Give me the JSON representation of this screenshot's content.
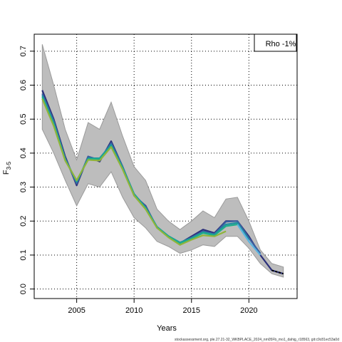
{
  "chart_data": {
    "type": "line",
    "xlabel": "Years",
    "ylabel_main": "F",
    "ylabel_sub": "3-5",
    "xlim": [
      2001.3,
      2024.2
    ],
    "ylim": [
      -0.028,
      0.75
    ],
    "x_ticks": [
      2005,
      2010,
      2015,
      2020
    ],
    "y_ticks": [
      0.0,
      0.1,
      0.2,
      0.3,
      0.4,
      0.5,
      0.6,
      0.7
    ],
    "grid": true,
    "legend": {
      "placement": "top-right",
      "text": "Rho -1%"
    },
    "caption": "stockassessment.org, ple.27.21-32_WKBPLACE_2024_nm05Fb_mo1_dahig_r18563, git:c9c81ec53a0d",
    "band": {
      "x": [
        2002,
        2003,
        2004,
        2005,
        2006,
        2007,
        2008,
        2009,
        2010,
        2011,
        2012,
        2013,
        2014,
        2015,
        2016,
        2017,
        2018,
        2019,
        2020,
        2021,
        2022,
        2023
      ],
      "lower": [
        0.47,
        0.4,
        0.32,
        0.245,
        0.31,
        0.3,
        0.345,
        0.27,
        0.21,
        0.18,
        0.14,
        0.125,
        0.105,
        0.115,
        0.13,
        0.125,
        0.155,
        0.155,
        0.12,
        0.075,
        0.045,
        0.035
      ],
      "upper": [
        0.72,
        0.6,
        0.47,
        0.38,
        0.49,
        0.47,
        0.55,
        0.45,
        0.36,
        0.32,
        0.235,
        0.2,
        0.175,
        0.2,
        0.23,
        0.21,
        0.265,
        0.27,
        0.2,
        0.115,
        0.075,
        0.065
      ]
    },
    "series": [
      {
        "color": "#2a2f7a",
        "x": [
          2002,
          2003,
          2004,
          2005,
          2006,
          2007,
          2008,
          2009,
          2010,
          2011,
          2012,
          2013,
          2014,
          2015,
          2016,
          2017,
          2018,
          2019,
          2020,
          2021,
          2022,
          2023
        ],
        "values": [
          0.585,
          0.5,
          0.39,
          0.305,
          0.39,
          0.375,
          0.435,
          0.36,
          0.275,
          0.245,
          0.18,
          0.155,
          0.135,
          0.155,
          0.175,
          0.165,
          0.2,
          0.2,
          0.155,
          0.1,
          0.055,
          0.045
        ]
      },
      {
        "color": "#3a5fa0",
        "x": [
          2002,
          2003,
          2004,
          2005,
          2006,
          2007,
          2008,
          2009,
          2010,
          2011,
          2012,
          2013,
          2014,
          2015,
          2016,
          2017,
          2018,
          2019,
          2020,
          2021
        ],
        "values": [
          0.575,
          0.495,
          0.385,
          0.31,
          0.39,
          0.38,
          0.43,
          0.36,
          0.278,
          0.243,
          0.182,
          0.155,
          0.136,
          0.152,
          0.17,
          0.162,
          0.198,
          0.2,
          0.15,
          0.105
        ]
      },
      {
        "color": "#1f8fa0",
        "x": [
          2002,
          2003,
          2004,
          2005,
          2006,
          2007,
          2008,
          2009,
          2010,
          2011,
          2012,
          2013,
          2014,
          2015,
          2016,
          2017,
          2018,
          2019,
          2020
        ],
        "values": [
          0.57,
          0.49,
          0.383,
          0.315,
          0.385,
          0.385,
          0.425,
          0.358,
          0.28,
          0.24,
          0.183,
          0.156,
          0.137,
          0.15,
          0.167,
          0.16,
          0.19,
          0.195,
          0.145
        ]
      },
      {
        "color": "#1fae8a",
        "x": [
          2002,
          2003,
          2004,
          2005,
          2006,
          2007,
          2008,
          2009,
          2010,
          2011,
          2012,
          2013,
          2014,
          2015,
          2016,
          2017,
          2018,
          2019
        ],
        "values": [
          0.565,
          0.485,
          0.38,
          0.318,
          0.383,
          0.383,
          0.42,
          0.355,
          0.278,
          0.238,
          0.182,
          0.155,
          0.135,
          0.148,
          0.165,
          0.158,
          0.185,
          0.19
        ]
      },
      {
        "color": "#8fb43a",
        "x": [
          2002,
          2003,
          2004,
          2005,
          2006,
          2007,
          2008,
          2009,
          2010,
          2011,
          2012,
          2013,
          2014,
          2015,
          2016,
          2017,
          2018
        ],
        "values": [
          0.56,
          0.48,
          0.378,
          0.32,
          0.38,
          0.378,
          0.418,
          0.352,
          0.275,
          0.235,
          0.18,
          0.152,
          0.13,
          0.145,
          0.158,
          0.155,
          0.17
        ]
      },
      {
        "color": "#5ab4e0",
        "x": [
          2019,
          2020,
          2021
        ],
        "values": [
          0.19,
          0.14,
          0.1
        ]
      }
    ]
  }
}
